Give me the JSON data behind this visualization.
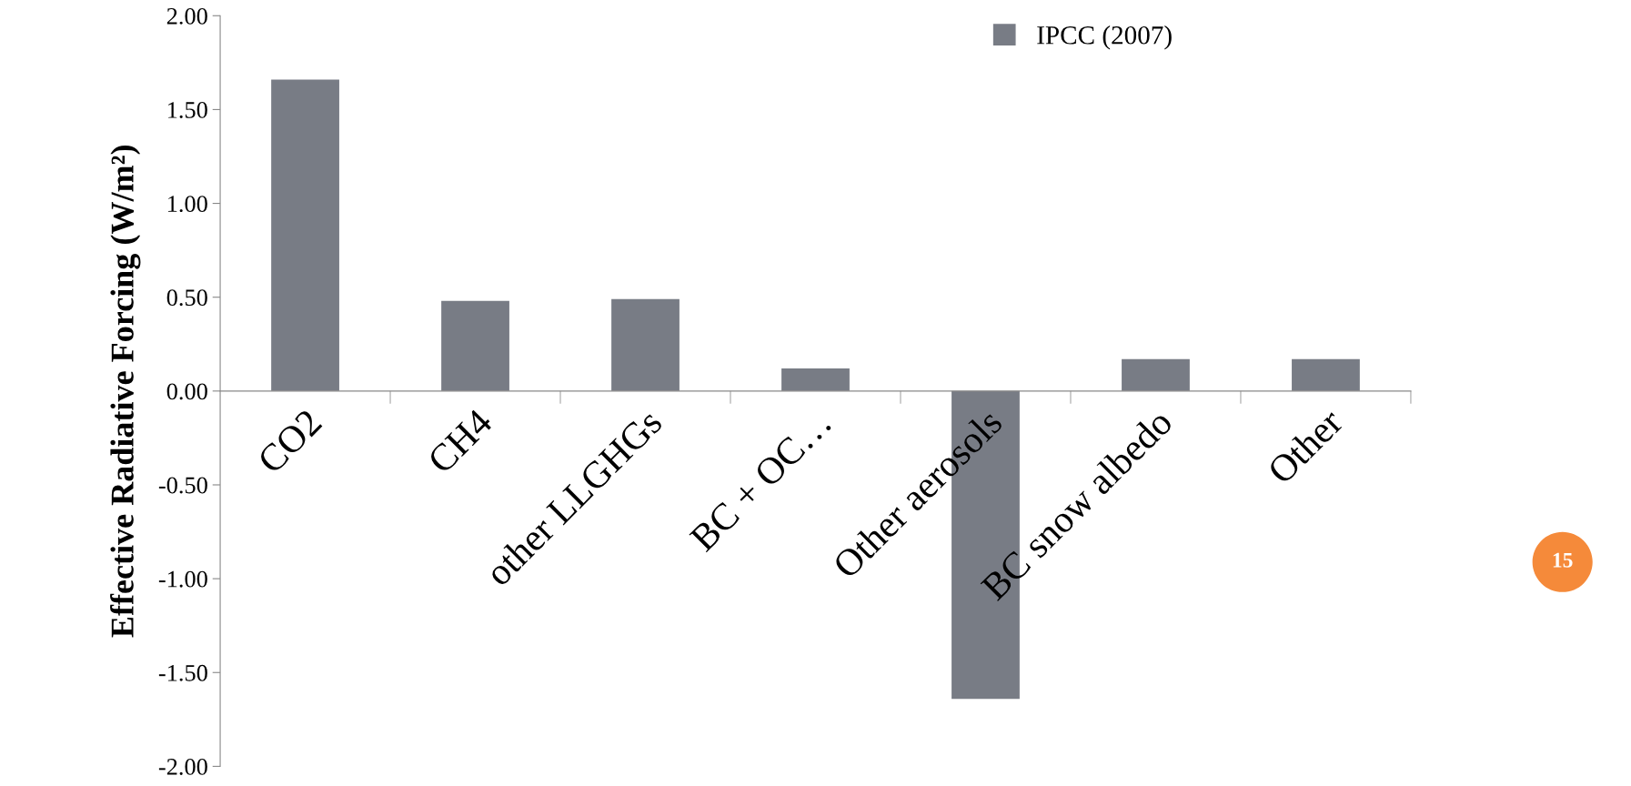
{
  "chart_data": {
    "type": "bar",
    "ylabel": "Effective Radiative Forcing (W/m²)",
    "categories": [
      "CO2",
      "CH4",
      "other LLGHGs",
      "BC + OC…",
      "Other aerosols",
      "BC snow albedo",
      "Other"
    ],
    "series": [
      {
        "name": "IPCC (2007)",
        "color": "#787c85",
        "values": [
          1.66,
          0.48,
          0.49,
          0.12,
          -1.64,
          0.17,
          0.17
        ]
      }
    ],
    "ylim": [
      -2.0,
      2.0
    ],
    "yticks": [
      {
        "value": -2.0,
        "label": "-2.00"
      },
      {
        "value": -1.5,
        "label": "-1.50"
      },
      {
        "value": -1.0,
        "label": "-1.00"
      },
      {
        "value": -0.5,
        "label": "-0.50"
      },
      {
        "value": 0.0,
        "label": "0.00"
      },
      {
        "value": 0.5,
        "label": "0.50"
      },
      {
        "value": 1.0,
        "label": "1.00"
      },
      {
        "value": 1.5,
        "label": "1.50"
      },
      {
        "value": 2.0,
        "label": "2.00"
      }
    ],
    "legend": "top right",
    "grid": false,
    "annotations": [
      "15"
    ]
  }
}
